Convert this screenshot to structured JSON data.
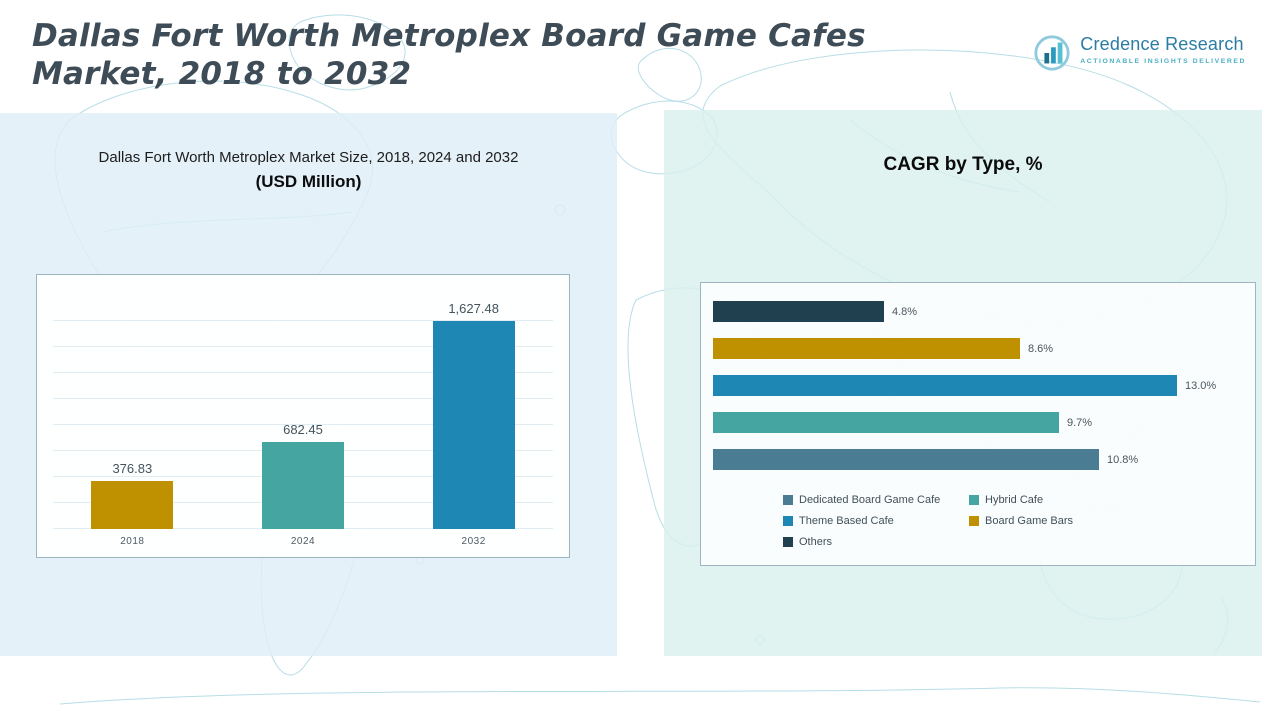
{
  "header": {
    "title_line1": "Dallas Fort Worth Metroplex Board Game Cafes",
    "title_line2": "Market, 2018 to 2032",
    "brand": {
      "name": "Credence Research",
      "tagline": "Actionable Insights Delivered",
      "icon": "bar-chart-logo-icon"
    }
  },
  "left_panel": {
    "subtitle": "Dallas Fort Worth Metroplex Market Size, 2018, 2024 and 2032",
    "unit": "(USD Million)"
  },
  "right_panel": {
    "title": "CAGR by Type, %"
  },
  "colors": {
    "gold": "#bf9000",
    "teal": "#45a5a0",
    "blue": "#1f87b4",
    "navy": "#203f4f",
    "steel": "#4a7d94",
    "title_text": "#3e4c57",
    "brand_blue": "#2b7ca3"
  },
  "chart_data": [
    {
      "type": "bar",
      "title": "Dallas Fort Worth Metroplex Market Size, 2018, 2024 and 2032 (USD Million)",
      "categories": [
        "2018",
        "2024",
        "2032"
      ],
      "values": [
        376.83,
        682.45,
        1627.48
      ],
      "value_labels": [
        "376.83",
        "682.45",
        "1,627.48"
      ],
      "bar_colors": [
        "#bf9000",
        "#45a5a0",
        "#1f87b4"
      ],
      "xlabel": "",
      "ylabel": "",
      "ylim": [
        0,
        1800
      ],
      "grid": true,
      "legend_position": "none"
    },
    {
      "type": "bar",
      "orientation": "horizontal",
      "title": "CAGR by Type, %",
      "categories": [
        "Others",
        "Board Game Bars",
        "Theme Based Cafe",
        "Hybrid Cafe",
        "Dedicated Board Game Cafe"
      ],
      "values": [
        4.8,
        8.6,
        13.0,
        9.7,
        10.8
      ],
      "value_labels": [
        "4.8%",
        "8.6%",
        "13.0%",
        "9.7%",
        "10.8%"
      ],
      "bar_colors": [
        "#203f4f",
        "#bf9000",
        "#1f87b4",
        "#45a5a0",
        "#4a7d94"
      ],
      "xlabel": "",
      "ylabel": "",
      "xlim": [
        0,
        14
      ],
      "grid": false,
      "legend_position": "bottom",
      "legend": [
        {
          "label": "Dedicated Board Game Cafe",
          "color": "#4a7d94"
        },
        {
          "label": "Hybrid Cafe",
          "color": "#45a5a0"
        },
        {
          "label": "Theme Based Cafe",
          "color": "#1f87b4"
        },
        {
          "label": "Board Game Bars",
          "color": "#bf9000"
        },
        {
          "label": "Others",
          "color": "#203f4f"
        }
      ]
    }
  ]
}
